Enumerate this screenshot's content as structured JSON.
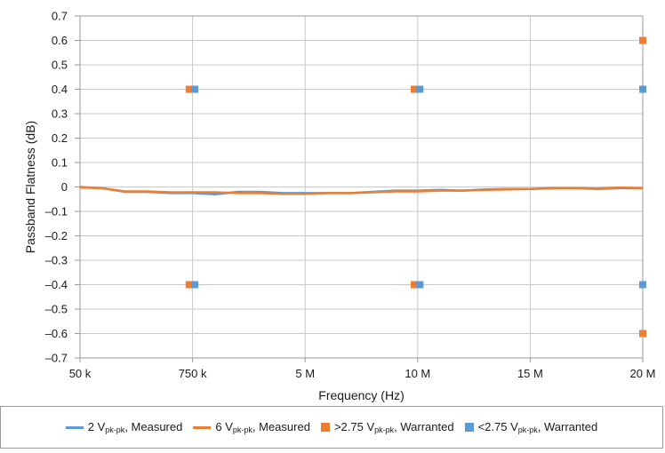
{
  "chart_data": {
    "type": "line",
    "xlabel": "Frequency (Hz)",
    "ylabel": "Passband Flatness (dB)",
    "x_categories": [
      "50 k",
      "750 k",
      "5 M",
      "10 M",
      "15 M",
      "20 M"
    ],
    "x_domain": [
      0,
      5
    ],
    "ylim": [
      -0.7,
      0.7
    ],
    "y_ticks": [
      {
        "value": 0.7,
        "label": "0.7"
      },
      {
        "value": 0.6,
        "label": "0.6"
      },
      {
        "value": 0.5,
        "label": "0.5"
      },
      {
        "value": 0.4,
        "label": "0.4"
      },
      {
        "value": 0.3,
        "label": "0.3"
      },
      {
        "value": 0.2,
        "label": "0.2"
      },
      {
        "value": 0.1,
        "label": "0.1"
      },
      {
        "value": 0,
        "label": "0"
      },
      {
        "value": -0.1,
        "label": "–0.1"
      },
      {
        "value": -0.2,
        "label": "–0.2"
      },
      {
        "value": -0.3,
        "label": "–0.3"
      },
      {
        "value": -0.4,
        "label": "–0.4"
      },
      {
        "value": -0.5,
        "label": "–0.5"
      },
      {
        "value": -0.6,
        "label": "–0.6"
      },
      {
        "value": -0.7,
        "label": "–0.7"
      }
    ],
    "grid": true,
    "legend_position": "bottom",
    "series": [
      {
        "name": "2 Vpk-pk, Measured",
        "name_parts": [
          "2 V",
          "pk-pk",
          ", Measured"
        ],
        "kind": "line",
        "color": "#5b9bd5",
        "x": [
          0,
          0.2,
          0.4,
          0.6,
          0.8,
          1.0,
          1.2,
          1.4,
          1.6,
          1.8,
          2.0,
          2.2,
          2.4,
          2.6,
          2.8,
          3.0,
          3.2,
          3.4,
          3.6,
          3.8,
          4.0,
          4.2,
          4.4,
          4.6,
          4.8,
          5.0
        ],
        "y": [
          0,
          -0.005,
          -0.02,
          -0.02,
          -0.025,
          -0.025,
          -0.03,
          -0.02,
          -0.02,
          -0.025,
          -0.025,
          -0.025,
          -0.025,
          -0.02,
          -0.015,
          -0.015,
          -0.012,
          -0.015,
          -0.01,
          -0.008,
          -0.008,
          -0.005,
          -0.005,
          -0.008,
          -0.005,
          -0.005
        ]
      },
      {
        "name": "6 Vpk-pk, Measured",
        "name_parts": [
          "6 V",
          "pk-pk",
          ", Measured"
        ],
        "kind": "line",
        "color": "#ed7d31",
        "x": [
          0,
          0.2,
          0.4,
          0.6,
          0.8,
          1.0,
          1.2,
          1.4,
          1.6,
          1.8,
          2.0,
          2.2,
          2.4,
          2.6,
          2.8,
          3.0,
          3.2,
          3.4,
          3.6,
          3.8,
          4.0,
          4.2,
          4.4,
          4.6,
          4.8,
          5.0
        ],
        "y": [
          -0.002,
          -0.005,
          -0.018,
          -0.018,
          -0.022,
          -0.022,
          -0.022,
          -0.025,
          -0.025,
          -0.028,
          -0.028,
          -0.025,
          -0.025,
          -0.022,
          -0.018,
          -0.018,
          -0.015,
          -0.015,
          -0.012,
          -0.01,
          -0.008,
          -0.005,
          -0.005,
          -0.007,
          -0.002,
          -0.005
        ]
      },
      {
        "name": ">2.75 Vpk-pk, Warranted",
        "name_parts": [
          ">2.75 V",
          "pk-pk",
          ", Warranted"
        ],
        "kind": "marker",
        "color": "#ed7d31",
        "x": [
          0.97,
          0.97,
          2.97,
          2.97,
          5.0,
          5.0
        ],
        "y": [
          0.4,
          -0.4,
          0.4,
          -0.4,
          0.6,
          -0.6
        ]
      },
      {
        "name": "<2.75 Vpk-pk, Warranted",
        "name_parts": [
          "<2.75 V",
          "pk-pk",
          ", Warranted"
        ],
        "kind": "marker",
        "color": "#5b9bd5",
        "x": [
          1.02,
          1.02,
          3.02,
          3.02,
          5.0,
          5.0
        ],
        "y": [
          0.4,
          -0.4,
          0.4,
          -0.4,
          0.4,
          -0.4
        ]
      }
    ]
  }
}
